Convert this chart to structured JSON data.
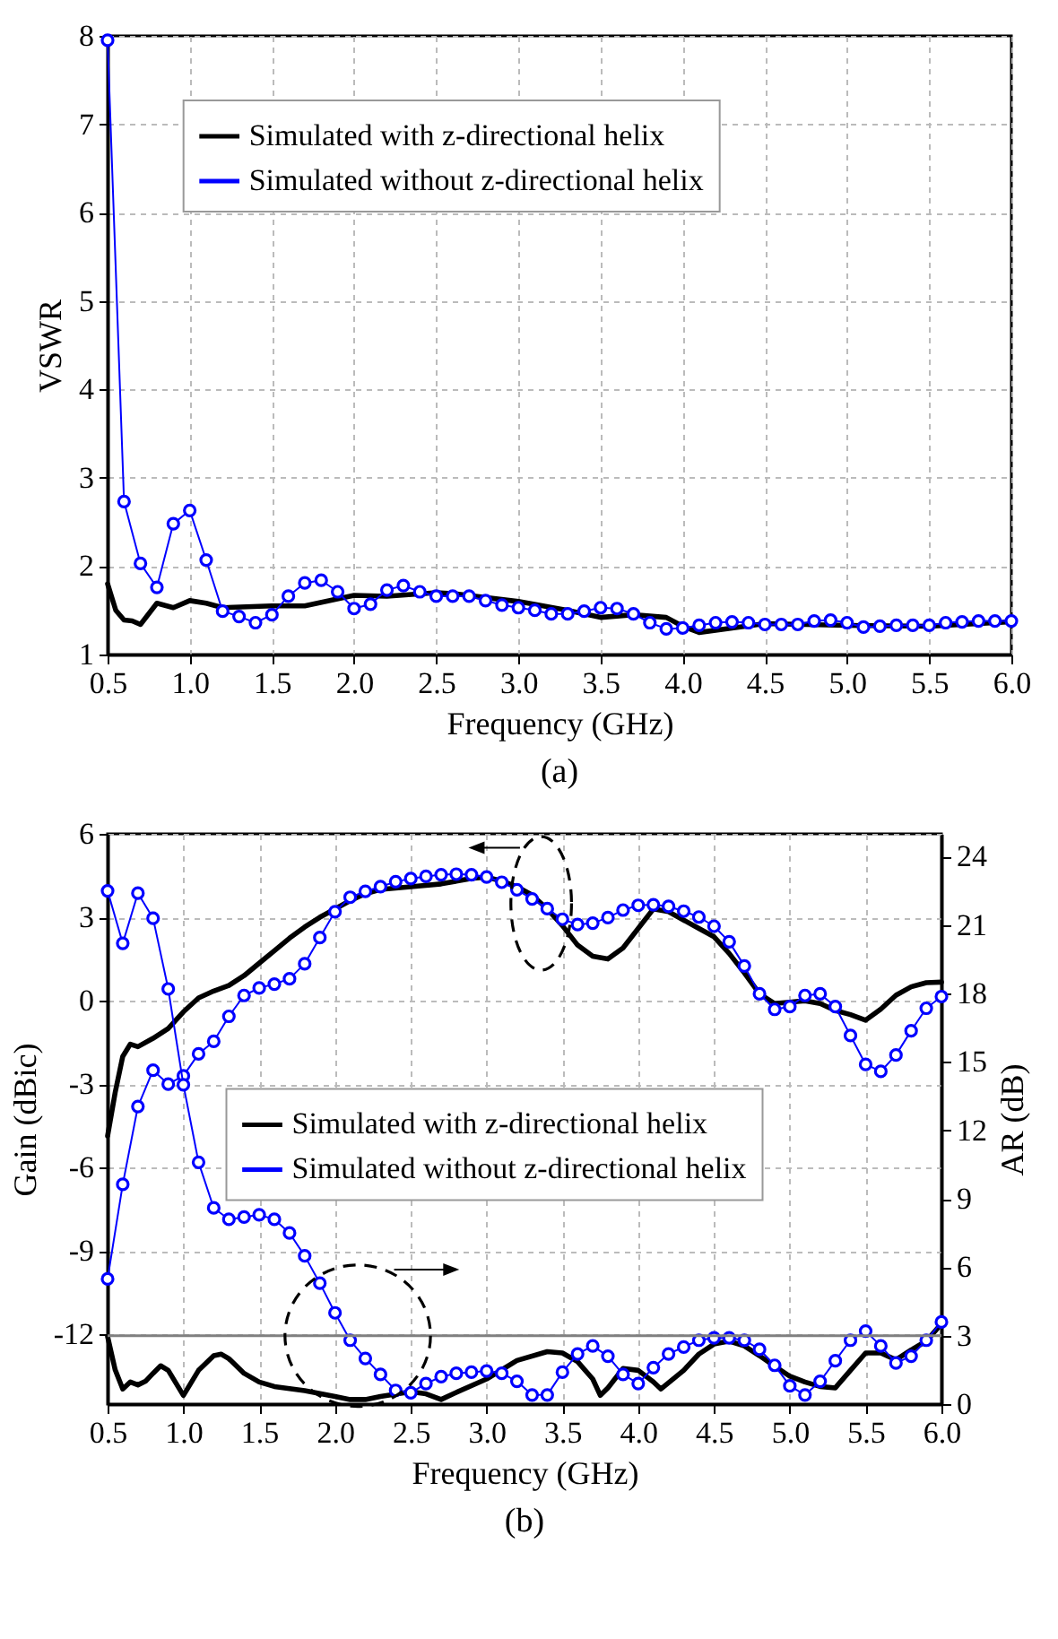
{
  "chart_data": [
    {
      "type": "line",
      "xlabel": "Frequency (GHz)",
      "ylabel": "VSWR",
      "annotations": [
        "(a)"
      ],
      "xlim": [
        0.5,
        6
      ],
      "xticks": [
        {
          "value": 0.5,
          "label": "0.5"
        },
        {
          "value": 1,
          "label": "1.0"
        },
        {
          "value": 1.5,
          "label": "1.5"
        },
        {
          "value": 2,
          "label": "2.0"
        },
        {
          "value": 2.5,
          "label": "2.5"
        },
        {
          "value": 3,
          "label": "3.0"
        },
        {
          "value": 3.5,
          "label": "3.5"
        },
        {
          "value": 4,
          "label": "4.0"
        },
        {
          "value": 4.5,
          "label": "4.5"
        },
        {
          "value": 5,
          "label": "5.0"
        },
        {
          "value": 5.5,
          "label": "5.5"
        },
        {
          "value": 6,
          "label": "6.0"
        }
      ],
      "ylim": [
        1,
        8
      ],
      "yticks": [
        1,
        2,
        3,
        4,
        5,
        6,
        7,
        8
      ],
      "grid": true,
      "legend": "top",
      "line_style": "solid",
      "series": [
        {
          "name": "Simulated with z-directional helix",
          "color": "#000000",
          "marker": "none",
          "x": [
            0.5,
            0.55,
            0.6,
            0.65,
            0.7,
            0.8,
            0.9,
            1.0,
            1.1,
            1.2,
            1.5,
            1.7,
            2.0,
            2.2,
            2.5,
            2.6,
            3.0,
            3.3,
            3.5,
            3.7,
            3.9,
            4.0,
            4.1,
            4.3,
            4.5,
            5.0,
            5.5,
            6.0
          ],
          "values": [
            1.8,
            1.5,
            1.39,
            1.38,
            1.34,
            1.58,
            1.53,
            1.61,
            1.58,
            1.53,
            1.55,
            1.55,
            1.67,
            1.66,
            1.7,
            1.69,
            1.6,
            1.5,
            1.42,
            1.45,
            1.42,
            1.32,
            1.25,
            1.3,
            1.35,
            1.33,
            1.32,
            1.37
          ]
        },
        {
          "name": "Simulated without z-directional helix",
          "color": "#0000ff",
          "marker": "circle",
          "x": [
            0.5,
            0.6,
            0.7,
            0.8,
            0.9,
            1.0,
            1.1,
            1.2,
            1.3,
            1.4,
            1.5,
            1.6,
            1.7,
            1.8,
            1.9,
            2.0,
            2.1,
            2.2,
            2.3,
            2.4,
            2.5,
            2.6,
            2.7,
            2.8,
            2.9,
            3.0,
            3.1,
            3.2,
            3.3,
            3.4,
            3.5,
            3.6,
            3.7,
            3.8,
            3.9,
            4.0,
            4.1,
            4.2,
            4.3,
            4.4,
            4.5,
            4.6,
            4.7,
            4.8,
            4.9,
            5.0,
            5.1,
            5.2,
            5.3,
            5.4,
            5.5,
            5.6,
            5.7,
            5.8,
            5.9,
            6.0
          ],
          "values": [
            7.95,
            2.73,
            2.03,
            1.76,
            2.48,
            2.63,
            2.07,
            1.49,
            1.43,
            1.36,
            1.45,
            1.66,
            1.81,
            1.84,
            1.71,
            1.52,
            1.57,
            1.73,
            1.78,
            1.71,
            1.66,
            1.66,
            1.66,
            1.61,
            1.56,
            1.53,
            1.5,
            1.46,
            1.46,
            1.49,
            1.53,
            1.52,
            1.46,
            1.36,
            1.29,
            1.3,
            1.33,
            1.36,
            1.37,
            1.36,
            1.34,
            1.34,
            1.34,
            1.38,
            1.39,
            1.36,
            1.31,
            1.32,
            1.33,
            1.33,
            1.33,
            1.36,
            1.37,
            1.38,
            1.38,
            1.38
          ]
        }
      ]
    },
    {
      "type": "line",
      "xlabel": "Frequency (GHz)",
      "ylabel": "Gain (dBic)",
      "y2label": "AR (dB)",
      "annotations": [
        "(b)"
      ],
      "xlim": [
        0.5,
        6
      ],
      "xticks": [
        {
          "value": 0.5,
          "label": "0.5"
        },
        {
          "value": 1,
          "label": "1.0"
        },
        {
          "value": 1.5,
          "label": "1.5"
        },
        {
          "value": 2,
          "label": "2.0"
        },
        {
          "value": 2.5,
          "label": "2.5"
        },
        {
          "value": 3,
          "label": "3.0"
        },
        {
          "value": 3.5,
          "label": "3.5"
        },
        {
          "value": 4,
          "label": "4.0"
        },
        {
          "value": 4.5,
          "label": "4.5"
        },
        {
          "value": 5,
          "label": "5.0"
        },
        {
          "value": 5.5,
          "label": "5.5"
        },
        {
          "value": 6,
          "label": "6.0"
        }
      ],
      "ylim": [
        -14.5,
        6
      ],
      "yticks": [
        -12,
        -9,
        -6,
        -3,
        0,
        3,
        6
      ],
      "y2lim": [
        0,
        25
      ],
      "y2ticks": [
        0,
        3,
        6,
        9,
        12,
        15,
        18,
        21,
        24
      ],
      "grid": true,
      "legend": "center",
      "line_style": "solid",
      "ref_lines": [
        {
          "axis": "y2",
          "value": 3,
          "color": "#808080"
        }
      ],
      "series": [
        {
          "name": "Simulated with z-directional helix",
          "color": "#000000",
          "marker": "none",
          "x": [
            0.5,
            0.55,
            0.6,
            0.65,
            0.7,
            0.8,
            0.9,
            1.0,
            1.1,
            1.2,
            1.3,
            1.4,
            1.5,
            1.6,
            1.7,
            1.8,
            1.9,
            2.0,
            2.1,
            2.2,
            2.3,
            2.5,
            2.7,
            2.9,
            3.0,
            3.1,
            3.2,
            3.3,
            3.4,
            3.5,
            3.6,
            3.7,
            3.8,
            3.9,
            4.0,
            4.1,
            4.2,
            4.3,
            4.4,
            4.5,
            4.6,
            4.7,
            4.8,
            4.9,
            5.0,
            5.1,
            5.2,
            5.3,
            5.4,
            5.5,
            5.6,
            5.7,
            5.8,
            5.9,
            6.0
          ],
          "values": [
            -4.86,
            -3.3,
            -2.0,
            -1.56,
            -1.65,
            -1.35,
            -1.0,
            -0.4,
            0.1,
            0.35,
            0.55,
            0.9,
            1.35,
            1.8,
            2.25,
            2.65,
            3.0,
            3.3,
            3.6,
            3.85,
            4.0,
            4.1,
            4.2,
            4.4,
            4.45,
            4.3,
            4.1,
            3.8,
            3.3,
            2.7,
            2.0,
            1.6,
            1.5,
            1.9,
            2.6,
            3.3,
            3.2,
            2.9,
            2.6,
            2.3,
            1.7,
            1.0,
            0.25,
            -0.1,
            -0.05,
            0.0,
            -0.1,
            -0.35,
            -0.5,
            -0.7,
            -0.3,
            0.2,
            0.5,
            0.65,
            0.67
          ]
        },
        {
          "name": "Simulated without z-directional helix",
          "color": "#0000ff",
          "marker": "circle",
          "x": [
            0.5,
            0.6,
            0.7,
            0.8,
            0.9,
            1.0,
            1.1,
            1.2,
            1.3,
            1.4,
            1.5,
            1.6,
            1.7,
            1.8,
            1.9,
            2.0,
            2.1,
            2.2,
            2.3,
            2.4,
            2.5,
            2.6,
            2.7,
            2.8,
            2.9,
            3.0,
            3.1,
            3.2,
            3.3,
            3.4,
            3.5,
            3.6,
            3.7,
            3.8,
            3.9,
            4.0,
            4.1,
            4.2,
            4.3,
            4.4,
            4.5,
            4.6,
            4.7,
            4.8,
            4.9,
            5.0,
            5.1,
            5.2,
            5.3,
            5.4,
            5.5,
            5.6,
            5.7,
            5.8,
            5.9,
            6.0
          ],
          "values": [
            -10.0,
            -6.6,
            -3.8,
            -2.5,
            -3.0,
            -2.7,
            -1.91,
            -1.46,
            -0.56,
            0.19,
            0.46,
            0.6,
            0.79,
            1.33,
            2.27,
            3.2,
            3.72,
            3.93,
            4.1,
            4.28,
            4.39,
            4.47,
            4.53,
            4.55,
            4.53,
            4.45,
            4.26,
            3.99,
            3.66,
            3.31,
            2.93,
            2.74,
            2.79,
            2.99,
            3.26,
            3.43,
            3.45,
            3.39,
            3.22,
            3.01,
            2.68,
            2.12,
            1.25,
            0.25,
            -0.31,
            -0.21,
            0.19,
            0.25,
            -0.21,
            -1.25,
            -2.29,
            -2.54,
            -1.95,
            -1.08,
            -0.27,
            0.15
          ]
        },
        {
          "color": "#000000",
          "marker": "none",
          "axis": "y2",
          "x": [
            0.5,
            0.55,
            0.6,
            0.65,
            0.7,
            0.75,
            0.8,
            0.85,
            0.9,
            1.0,
            1.1,
            1.2,
            1.25,
            1.3,
            1.4,
            1.5,
            1.6,
            1.8,
            2.0,
            2.1,
            2.2,
            2.3,
            2.5,
            2.6,
            2.7,
            2.8,
            3.0,
            3.2,
            3.4,
            3.5,
            3.6,
            3.7,
            3.75,
            3.8,
            3.9,
            4.0,
            4.1,
            4.15,
            4.3,
            4.4,
            4.5,
            4.6,
            4.7,
            4.8,
            4.9,
            5.0,
            5.1,
            5.2,
            5.3,
            5.4,
            5.5,
            5.6,
            5.7,
            5.8,
            5.9,
            6.0
          ],
          "values": [
            2.96,
            1.5,
            0.66,
            0.97,
            0.84,
            1.0,
            1.35,
            1.68,
            1.48,
            0.38,
            1.48,
            2.12,
            2.19,
            1.99,
            1.35,
            0.97,
            0.77,
            0.59,
            0.33,
            0.2,
            0.2,
            0.33,
            0.54,
            0.45,
            0.2,
            0.51,
            1.1,
            1.91,
            2.3,
            2.24,
            1.86,
            1.1,
            0.38,
            0.71,
            1.56,
            1.48,
            0.97,
            0.66,
            1.48,
            2.19,
            2.63,
            2.76,
            2.55,
            2.12,
            1.66,
            1.22,
            0.97,
            0.77,
            0.71,
            1.48,
            2.24,
            2.24,
            1.94,
            2.37,
            2.76,
            3.52
          ]
        },
        {
          "color": "#0000ff",
          "marker": "circle",
          "axis": "y2",
          "x": [
            0.5,
            0.6,
            0.7,
            0.8,
            0.9,
            1.0,
            1.1,
            1.2,
            1.3,
            1.4,
            1.5,
            1.6,
            1.7,
            1.8,
            1.9,
            2.0,
            2.1,
            2.2,
            2.3,
            2.4,
            2.5,
            2.6,
            2.7,
            2.8,
            2.9,
            3.0,
            3.1,
            3.2,
            3.3,
            3.4,
            3.5,
            3.6,
            3.7,
            3.8,
            3.9,
            4.0,
            4.1,
            4.2,
            4.3,
            4.4,
            4.5,
            4.6,
            4.7,
            4.8,
            4.9,
            5.0,
            5.1,
            5.2,
            5.3,
            5.4,
            5.5,
            5.6,
            5.7,
            5.8,
            5.9,
            6.0
          ],
          "values": [
            22.5,
            20.2,
            22.4,
            21.3,
            18.2,
            14.0,
            10.6,
            8.6,
            8.1,
            8.2,
            8.3,
            8.1,
            7.5,
            6.5,
            5.3,
            4.0,
            2.8,
            2.0,
            1.3,
            0.6,
            0.5,
            0.9,
            1.2,
            1.35,
            1.4,
            1.45,
            1.35,
            1.0,
            0.4,
            0.4,
            1.4,
            2.2,
            2.55,
            2.1,
            1.3,
            0.9,
            1.6,
            2.2,
            2.5,
            2.8,
            2.9,
            2.9,
            2.8,
            2.4,
            1.7,
            0.8,
            0.4,
            1.0,
            1.9,
            2.8,
            3.2,
            2.55,
            1.8,
            2.1,
            2.8,
            3.6
          ]
        }
      ]
    }
  ]
}
